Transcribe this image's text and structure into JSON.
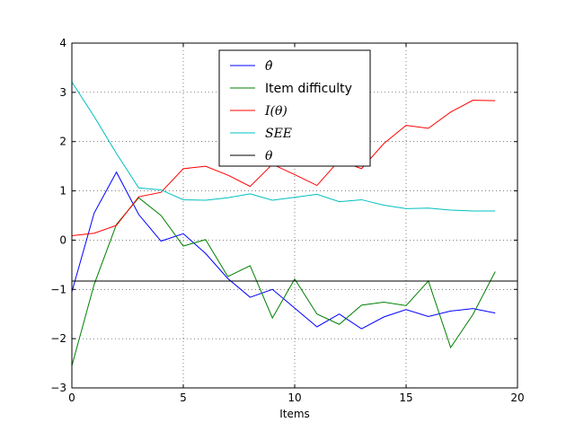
{
  "chart_data": {
    "type": "line",
    "xlabel": "Items",
    "ylabel": "",
    "title": "",
    "xlim": [
      0,
      20
    ],
    "ylim": [
      -3,
      4
    ],
    "xticks": [
      "0",
      "5",
      "10",
      "15",
      "20"
    ],
    "yticks": [
      "−3",
      "−2",
      "−1",
      "0",
      "1",
      "2",
      "3",
      "4"
    ],
    "grid": true,
    "legend_position": "upper-center",
    "series": [
      {
        "name": "θ̂",
        "color": "#0000ff",
        "x": [
          0,
          1,
          2,
          3,
          4,
          5,
          6,
          7,
          8,
          9,
          10,
          11,
          12,
          13,
          14,
          15,
          16,
          17,
          18,
          19
        ],
        "values": [
          -1.05,
          0.55,
          1.38,
          0.52,
          -0.02,
          0.13,
          -0.27,
          -0.78,
          -1.16,
          -1.0,
          -1.38,
          -1.76,
          -1.5,
          -1.8,
          -1.56,
          -1.41,
          -1.55,
          -1.44,
          -1.39,
          -1.48
        ]
      },
      {
        "name": "Item difficulty",
        "color": "#008000",
        "x": [
          0,
          1,
          2,
          3,
          4,
          5,
          6,
          7,
          8,
          9,
          10,
          11,
          12,
          13,
          14,
          15,
          16,
          17,
          18,
          19
        ],
        "values": [
          -2.55,
          -0.9,
          0.32,
          0.86,
          0.5,
          -0.12,
          0.01,
          -0.74,
          -0.52,
          -1.58,
          -0.79,
          -1.5,
          -1.71,
          -1.32,
          -1.26,
          -1.33,
          -0.83,
          -2.18,
          -1.51,
          -0.64
        ]
      },
      {
        "name": "I(θ)",
        "color": "#ff0000",
        "x": [
          0,
          1,
          2,
          3,
          4,
          5,
          6,
          7,
          8,
          9,
          10,
          11,
          12,
          13,
          14,
          15,
          16,
          17,
          18,
          19
        ],
        "values": [
          0.09,
          0.14,
          0.3,
          0.88,
          0.97,
          1.45,
          1.5,
          1.32,
          1.09,
          1.54,
          1.33,
          1.11,
          1.62,
          1.45,
          1.96,
          2.33,
          2.27,
          2.6,
          2.84,
          2.83
        ]
      },
      {
        "name": "SEE",
        "color": "#00bfbf",
        "x": [
          0,
          1,
          2,
          3,
          4,
          5,
          6,
          7,
          8,
          9,
          10,
          11,
          12,
          13,
          14,
          15,
          16,
          17,
          18,
          19
        ],
        "values": [
          3.21,
          2.51,
          1.76,
          1.06,
          1.02,
          0.82,
          0.81,
          0.86,
          0.94,
          0.81,
          0.87,
          0.93,
          0.78,
          0.82,
          0.71,
          0.64,
          0.65,
          0.61,
          0.59,
          0.59
        ]
      },
      {
        "name": "θ",
        "color": "#000000",
        "x": [
          0,
          20
        ],
        "values": [
          -0.83,
          -0.83
        ]
      }
    ],
    "legend": [
      {
        "label": "θ̂",
        "style": "math"
      },
      {
        "label": "Item difficulty",
        "style": "plain"
      },
      {
        "label": "I(θ)",
        "style": "math"
      },
      {
        "label": "SEE",
        "style": "math"
      },
      {
        "label": "θ",
        "style": "math"
      }
    ]
  }
}
